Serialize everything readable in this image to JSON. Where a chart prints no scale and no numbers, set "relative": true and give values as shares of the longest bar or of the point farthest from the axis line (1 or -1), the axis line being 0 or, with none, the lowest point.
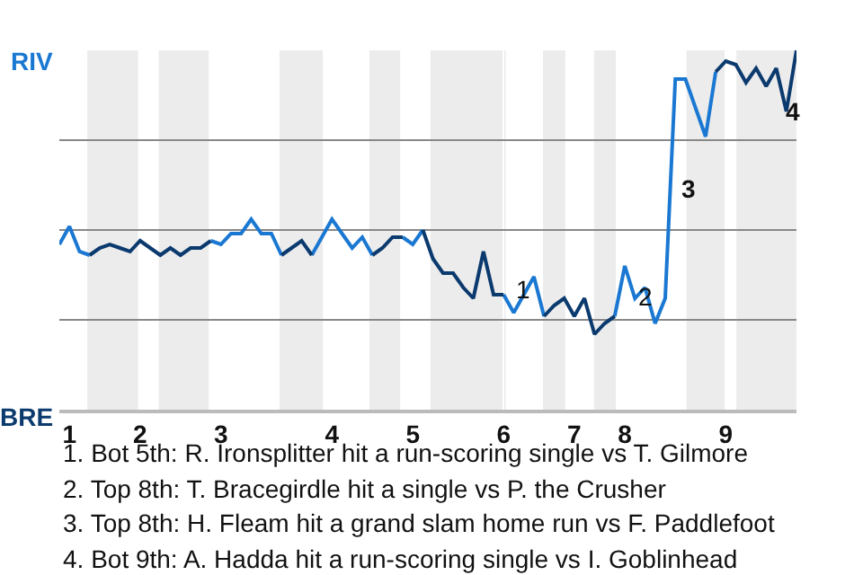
{
  "chart_data": {
    "type": "line",
    "categories": [
      null,
      "1",
      null,
      null,
      null,
      null,
      null,
      null,
      "2",
      null,
      null,
      null,
      null,
      null,
      null,
      null,
      "3",
      null,
      null,
      null,
      null,
      null,
      null,
      null,
      null,
      null,
      null,
      "4",
      null,
      null,
      null,
      null,
      null,
      null,
      null,
      "5",
      null,
      null,
      null,
      null,
      null,
      null,
      null,
      null,
      "6",
      null,
      null,
      null,
      null,
      null,
      null,
      "7",
      null,
      null,
      null,
      null,
      "8",
      null,
      null,
      null,
      null,
      null,
      null,
      null,
      null,
      null,
      "9",
      null,
      null,
      null,
      null,
      null,
      null,
      null
    ],
    "relative": true,
    "series": [
      {
        "color": "#1a78d2",
        "values": [
          0.46,
          0.51,
          0.44,
          0.43,
          null,
          null,
          null,
          null,
          null,
          null,
          null,
          null,
          null,
          null,
          null,
          0.47,
          0.46,
          0.49,
          0.49,
          0.53,
          0.49,
          0.49,
          0.43,
          null,
          null,
          0.43,
          0.48,
          0.53,
          0.49,
          0.45,
          0.48,
          0.43,
          null,
          null,
          0.48,
          0.46,
          0.5,
          null,
          null,
          null,
          null,
          null,
          null,
          null,
          0.32,
          0.27,
          0.32,
          0.37,
          0.26,
          null,
          null,
          null,
          null,
          null,
          null,
          0.26,
          0.4,
          0.31,
          0.34,
          0.24,
          0.31,
          0.92,
          0.92,
          0.84,
          0.76,
          0.94,
          null,
          null,
          null,
          null,
          null,
          null,
          null,
          null
        ]
      },
      {
        "color": "#0b3a6e",
        "values": [
          null,
          null,
          null,
          0.43,
          0.45,
          0.46,
          0.45,
          0.44,
          0.47,
          0.45,
          0.43,
          0.45,
          0.43,
          0.45,
          0.45,
          0.47,
          null,
          null,
          null,
          null,
          null,
          null,
          0.43,
          0.45,
          0.47,
          0.43,
          null,
          null,
          null,
          null,
          null,
          0.43,
          0.45,
          0.48,
          0.48,
          null,
          0.5,
          0.42,
          0.38,
          0.38,
          0.34,
          0.31,
          0.44,
          0.32,
          0.32,
          null,
          null,
          null,
          0.26,
          0.29,
          0.31,
          0.26,
          0.31,
          0.21,
          0.24,
          0.26,
          null,
          null,
          null,
          null,
          null,
          null,
          null,
          null,
          null,
          0.94,
          0.97,
          0.96,
          0.91,
          0.95,
          0.9,
          0.95,
          0.83,
          1.0
        ]
      }
    ],
    "grid": true,
    "marker": "none",
    "line_style": "solid",
    "annotations": [
      "RIV",
      "BRE",
      {
        "text": "1",
        "x": "6",
        "y": 0.32
      },
      {
        "text": "2",
        "x": "8",
        "y": 0.3
      },
      "3",
      "4",
      "1. Bot 5th: R. Ironsplitter hit a run-scoring single vs T. Gilmore",
      "2. Top 8th: T. Bracegirdle hit a single vs P. the Crusher",
      "3. Top 8th: H. Fleam hit a grand slam home run vs F. Paddlefoot",
      "4. Bot 9th: A. Hadda hit a run-scoring single vs I. Goblinhead"
    ]
  }
}
